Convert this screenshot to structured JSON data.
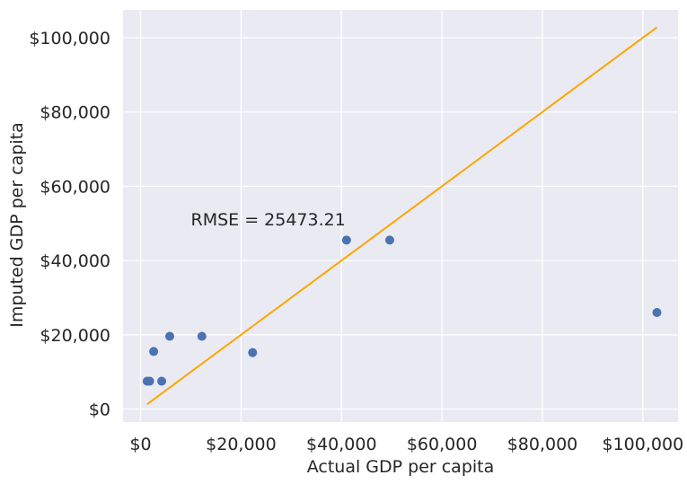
{
  "chart_data": {
    "type": "scatter",
    "title": "",
    "xlabel": "Actual GDP per capita",
    "ylabel": "Imputed GDP per capita",
    "xlim": [
      -3500,
      107000
    ],
    "ylim": [
      -3500,
      107500
    ],
    "xticks": [
      0,
      20000,
      40000,
      60000,
      80000,
      100000
    ],
    "yticks": [
      0,
      20000,
      40000,
      60000,
      80000,
      100000
    ],
    "xtick_labels": [
      "$0",
      "$20,000",
      "$40,000",
      "$60,000",
      "$80,000",
      "$100,000"
    ],
    "ytick_labels": [
      "$0",
      "$20,000",
      "$40,000",
      "$60,000",
      "$80,000",
      "$100,000"
    ],
    "grid": true,
    "points": [
      {
        "x": 1300,
        "y": 7500
      },
      {
        "x": 1800,
        "y": 7500
      },
      {
        "x": 2600,
        "y": 15500
      },
      {
        "x": 4200,
        "y": 7500
      },
      {
        "x": 5800,
        "y": 19600
      },
      {
        "x": 12200,
        "y": 19600
      },
      {
        "x": 22300,
        "y": 15200
      },
      {
        "x": 41000,
        "y": 45500
      },
      {
        "x": 49600,
        "y": 45500
      },
      {
        "x": 102800,
        "y": 26000
      }
    ],
    "fit_line": {
      "x": [
        1300,
        102800
      ],
      "y": [
        1300,
        102800
      ]
    },
    "annotation": {
      "text": "RMSE = 25473.21",
      "x": 10000,
      "y": 49500
    },
    "colors": {
      "points": "#4c72b0",
      "line": "#ffa500",
      "background": "#eaeaf2",
      "grid": "#ffffff"
    }
  }
}
